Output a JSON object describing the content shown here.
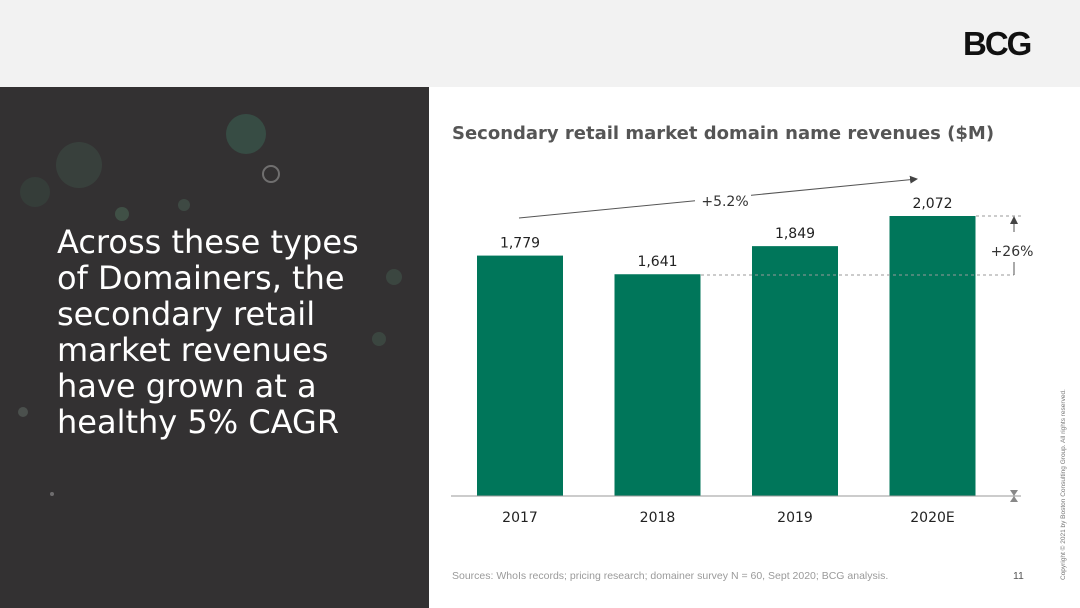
{
  "logo": {
    "text": "BCG"
  },
  "headline": "Across these types of Domainers, the secondary retail market revenues have grown at a healthy 5% CAGR",
  "chart_data": {
    "type": "bar",
    "title": "Secondary retail market domain name revenues ($M)",
    "categories": [
      "2017",
      "2018",
      "2019",
      "2020E"
    ],
    "values": [
      1779,
      1641,
      1849,
      2072
    ],
    "value_labels": [
      "1,779",
      "1,641",
      "1,849",
      "2,072"
    ],
    "bar_color": "#00765a",
    "ylim": [
      0,
      2072
    ],
    "annotations": {
      "cagr_label": "+5.2%",
      "growth_label": "+26%"
    }
  },
  "footer": {
    "source": "Sources: WhoIs records; pricing research; domainer survey N = 60, Sept 2020; BCG analysis.",
    "page_number": "11",
    "copyright": "Copyright © 2021 by Boston Consulting Group. All rights reserved."
  },
  "colors": {
    "top_bar": "#f2f2f2",
    "left_panel": "#333132",
    "accent_green": "#00765a"
  }
}
